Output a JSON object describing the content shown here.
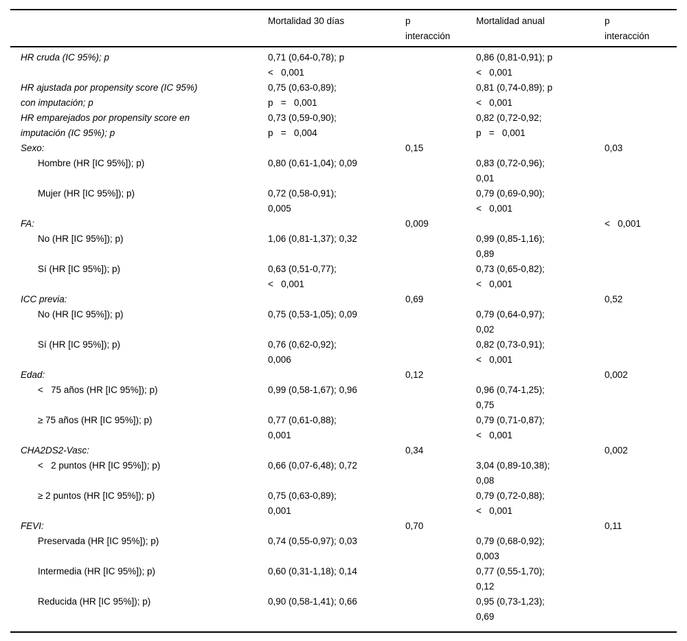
{
  "table": {
    "header": {
      "row_label": "",
      "mortality_30d": "Mortalidad 30 días",
      "p_interaction_30d": "p\ninteracción",
      "mortality_annual": "Mortalidad anual",
      "p_interaction_annual": "p\ninteracción"
    },
    "rows": [
      {
        "label": "HR cruda (IC 95%); p",
        "italic": true,
        "indent": false,
        "m30": "0,71 (0,64-0,78); p\n<   0,001",
        "pi30": "",
        "ma": "0,86 (0,81-0,91); p\n<   0,001",
        "pia": ""
      },
      {
        "label": "HR ajustada por propensity score (IC 95%)\ncon imputación; p",
        "italic": true,
        "indent": false,
        "m30": "0,75 (0,63-0,89);\np   =   0,001",
        "pi30": "",
        "ma": "0,81 (0,74-0,89); p\n<   0,001",
        "pia": ""
      },
      {
        "label": "HR emparejados por propensity score en\nimputación (IC 95%); p",
        "italic": true,
        "indent": false,
        "m30": "0,73 (0,59-0,90);\np   =   0,004",
        "pi30": "",
        "ma": "0,82 (0,72-0,92;\np   =   0,001",
        "pia": ""
      },
      {
        "label": "Sexo:",
        "italic": true,
        "indent": false,
        "m30": "",
        "pi30": "0,15",
        "ma": "",
        "pia": "0,03"
      },
      {
        "label": "Hombre (HR [IC 95%]); p)",
        "italic": false,
        "indent": true,
        "m30": "0,80 (0,61-1,04); 0,09",
        "pi30": "",
        "ma": "0,83 (0,72-0,96);\n0,01",
        "pia": ""
      },
      {
        "label": "Mujer (HR [IC 95%]); p)",
        "italic": false,
        "indent": true,
        "m30": "0,72 (0,58-0,91);\n0,005",
        "pi30": "",
        "ma": "0,79 (0,69-0,90);\n<   0,001",
        "pia": ""
      },
      {
        "label": "FA:",
        "italic": true,
        "indent": false,
        "m30": "",
        "pi30": "0,009",
        "ma": "",
        "pia": "<   0,001"
      },
      {
        "label": "No (HR [IC 95%]); p)",
        "italic": false,
        "indent": true,
        "m30": "1,06 (0,81-1,37); 0,32",
        "pi30": "",
        "ma": "0,99 (0,85-1,16);\n0,89",
        "pia": ""
      },
      {
        "label": "Sí (HR [IC 95%]); p)",
        "italic": false,
        "indent": true,
        "m30": "0,63 (0,51-0,77);\n<   0,001",
        "pi30": "",
        "ma": "0,73 (0,65-0,82);\n<   0,001",
        "pia": ""
      },
      {
        "label": "ICC previa:",
        "italic": true,
        "indent": false,
        "m30": "",
        "pi30": "0,69",
        "ma": "",
        "pia": "0,52"
      },
      {
        "label": "No (HR [IC 95%]); p)",
        "italic": false,
        "indent": true,
        "m30": "0,75 (0,53-1,05); 0,09",
        "pi30": "",
        "ma": "0,79 (0,64-0,97);\n0,02",
        "pia": ""
      },
      {
        "label": "Sí (HR [IC 95%]); p)",
        "italic": false,
        "indent": true,
        "m30": "0,76 (0,62-0,92);\n0,006",
        "pi30": "",
        "ma": "0,82 (0,73-0,91);\n<   0,001",
        "pia": ""
      },
      {
        "label": "Edad:",
        "italic": true,
        "indent": false,
        "m30": "",
        "pi30": "0,12",
        "ma": "",
        "pia": "0,002"
      },
      {
        "label": "<   75 años (HR [IC 95%]); p)",
        "italic": false,
        "indent": true,
        "m30": "0,99 (0,58-1,67); 0,96",
        "pi30": "",
        "ma": "0,96 (0,74-1,25);\n0,75",
        "pia": ""
      },
      {
        "label": "≥ 75 años (HR [IC 95%]); p)",
        "italic": false,
        "indent": true,
        "m30": "0,77 (0,61-0,88);\n0,001",
        "pi30": "",
        "ma": "0,79 (0,71-0,87);\n<   0,001",
        "pia": ""
      },
      {
        "label": "CHA2DS2-Vasc:",
        "italic": true,
        "indent": false,
        "m30": "",
        "pi30": "0,34",
        "ma": "",
        "pia": "0,002"
      },
      {
        "label": "<   2 puntos (HR [IC 95%]); p)",
        "italic": false,
        "indent": true,
        "m30": "0,66 (0,07-6,48); 0,72",
        "pi30": "",
        "ma": "3,04 (0,89-10,38);\n0,08",
        "pia": ""
      },
      {
        "label": "≥ 2 puntos (HR [IC 95%]); p)",
        "italic": false,
        "indent": true,
        "m30": "0,75 (0,63-0,89);\n0,001",
        "pi30": "",
        "ma": "0,79 (0,72-0,88);\n<   0,001",
        "pia": ""
      },
      {
        "label": "FEVI:",
        "italic": true,
        "indent": false,
        "m30": "",
        "pi30": "0,70",
        "ma": "",
        "pia": "0,11"
      },
      {
        "label": "Preservada (HR [IC 95%]); p)",
        "italic": false,
        "indent": true,
        "m30": "0,74 (0,55-0,97); 0,03",
        "pi30": "",
        "ma": "0,79 (0,68-0,92);\n0,003",
        "pia": ""
      },
      {
        "label": "Intermedia (HR [IC 95%]); p)",
        "italic": false,
        "indent": true,
        "m30": "0,60 (0,31-1,18); 0,14",
        "pi30": "",
        "ma": "0,77 (0,55-1,70);\n0,12",
        "pia": ""
      },
      {
        "label": "Reducida (HR [IC 95%]); p)",
        "italic": false,
        "indent": true,
        "m30": "0,90 (0,58-1,41); 0,66",
        "pi30": "",
        "ma": "0,95 (0,73-1,23);\n0,69",
        "pia": ""
      }
    ]
  }
}
